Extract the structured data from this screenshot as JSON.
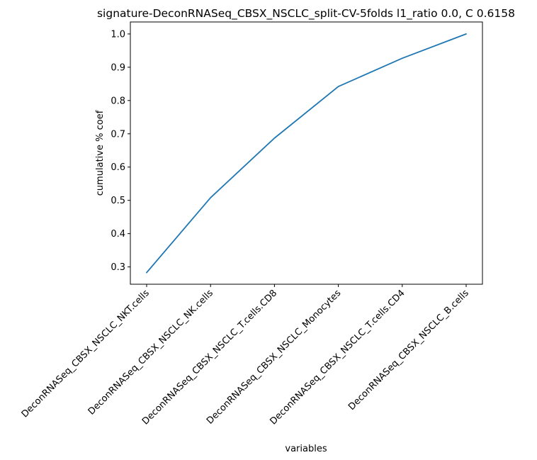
{
  "chart_data": {
    "type": "line",
    "title": "signature-DeconRNASeq_CBSX_NSCLC_split-CV-5folds l1_ratio 0.0, C 0.6158",
    "xlabel": "variables",
    "ylabel": "cumulative % coef",
    "categories": [
      "DeconRNASeq_CBSX_NSCLC_NKT.cells",
      "DeconRNASeq_CBSX_NSCLC_NK.cells",
      "DeconRNASeq_CBSX_NSCLC_T.cells.CD8",
      "DeconRNASeq_CBSX_NSCLC_Monocytes",
      "DeconRNASeq_CBSX_NSCLC_T.cells.CD4",
      "DeconRNASeq_CBSX_NSCLC_B.cells"
    ],
    "series": [
      {
        "values": [
          0.283,
          0.508,
          0.687,
          0.842,
          0.927,
          1.0
        ]
      }
    ],
    "ylim": [
      0.248,
      1.036
    ],
    "yticks": [
      0.3,
      0.4,
      0.5,
      0.6,
      0.7,
      0.8,
      0.9,
      1.0
    ],
    "ytick_labels": [
      "0.3",
      "0.4",
      "0.5",
      "0.6",
      "0.7",
      "0.8",
      "0.9",
      "1.0"
    ],
    "grid": false,
    "legend": "none",
    "line_color": "#1f77b4"
  }
}
